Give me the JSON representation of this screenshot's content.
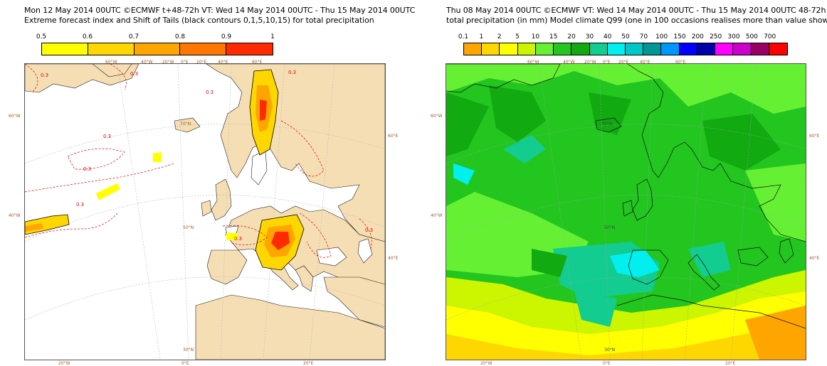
{
  "left_panel": {
    "title_line1": "Mon 12 May 2014 00UTC ©ECMWF t+48-72h  VT: Wed 14 May 2014 00UTC - Thu 15 May 2014 00UTC",
    "title_line2": "Extreme forecast index and Shift of Tails (black contours 0,1,5,10,15) for total precipitation",
    "legend": {
      "labels": [
        "0.5",
        "0.6",
        "0.7",
        "0.8",
        "0.9",
        "1"
      ],
      "colors": [
        "#ffff00",
        "#ffd700",
        "#ffa500",
        "#ff7700",
        "#ff2a00"
      ]
    },
    "map_labels": {
      "lon_top": [
        "60°W",
        "40°W",
        "20°W",
        "0°E",
        "20°E",
        "40°E",
        "60°E"
      ],
      "lon_bottom": [
        "20°W",
        "0°E",
        "20°E"
      ],
      "lat_left": [
        "60°W",
        "40°W"
      ],
      "lat_right": [
        "60°E",
        "40°E"
      ],
      "lat_lines": [
        "70°N",
        "50°N",
        "30°N"
      ],
      "contour_values": [
        "0.3",
        "0.3",
        "0.3",
        "0.3",
        "0.3",
        "0.3",
        "0.3",
        "0.3",
        "0.3"
      ]
    },
    "colors": {
      "land": "#f5deb3",
      "sea": "#ffffff",
      "coast": "#222222",
      "grid": "#b9b9b9",
      "dashed_contour": "#e60000"
    }
  },
  "right_panel": {
    "title_line1": "Thu 08 May 2014 00UTC ©ECMWF VT: Wed 14 May 2014 00UTC - Thu 15 May 2014 00UTC   48-72h",
    "title_line2": "total precipitation (in mm)  Model climate Q99 (one in 100 occasions realises more than value shown)",
    "legend": {
      "labels": [
        "0.1",
        "1",
        "2",
        "5",
        "10",
        "15",
        "20",
        "30",
        "40",
        "50",
        "70",
        "100",
        "150",
        "200",
        "250",
        "300",
        "500",
        "700"
      ],
      "colors": [
        "#ffa500",
        "#ffd700",
        "#ffff00",
        "#ccf500",
        "#66f033",
        "#22c61f",
        "#11aa11",
        "#12cc90",
        "#00f0f0",
        "#00c8c8",
        "#009696",
        "#0096ff",
        "#0000ff",
        "#0000aa",
        "#ff00ff",
        "#cc00cc",
        "#990066",
        "#ff0000"
      ]
    },
    "map_labels": {
      "lon_top": [
        "60°W",
        "40°W",
        "20°W",
        "0°E",
        "20°E",
        "40°E",
        "60°E"
      ],
      "lon_bottom": [
        "20°W",
        "0°E",
        "20°E"
      ],
      "lat_left": [
        "60°W",
        "40°W"
      ],
      "lat_right": [
        "60°E",
        "40°E"
      ],
      "lat_lines": [
        "70°N",
        "50°N",
        "30°N"
      ]
    }
  }
}
